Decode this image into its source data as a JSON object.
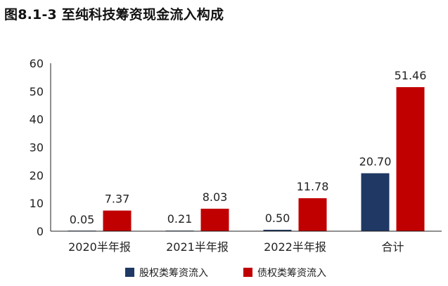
{
  "title": "图8.1-3 至纯科技筹资现金流入构成",
  "chart_data": {
    "type": "bar",
    "categories": [
      "2020半年报",
      "2021半年报",
      "2022半年报",
      "合计"
    ],
    "series": [
      {
        "name": "股权类筹资流入",
        "color": "#1f3864",
        "values": [
          0.05,
          0.21,
          0.5,
          20.7
        ],
        "labels": [
          "0.05",
          "0.21",
          "0.50",
          "20.70"
        ]
      },
      {
        "name": "债权类筹资流入",
        "color": "#c00000",
        "values": [
          7.37,
          8.03,
          11.78,
          51.46
        ],
        "labels": [
          "7.37",
          "8.03",
          "11.78",
          "51.46"
        ]
      }
    ],
    "yticks": [
      "0",
      "10",
      "20",
      "30",
      "40",
      "50",
      "60"
    ],
    "ylim": [
      0,
      60
    ],
    "grid": false,
    "legend_position": "bottom"
  }
}
